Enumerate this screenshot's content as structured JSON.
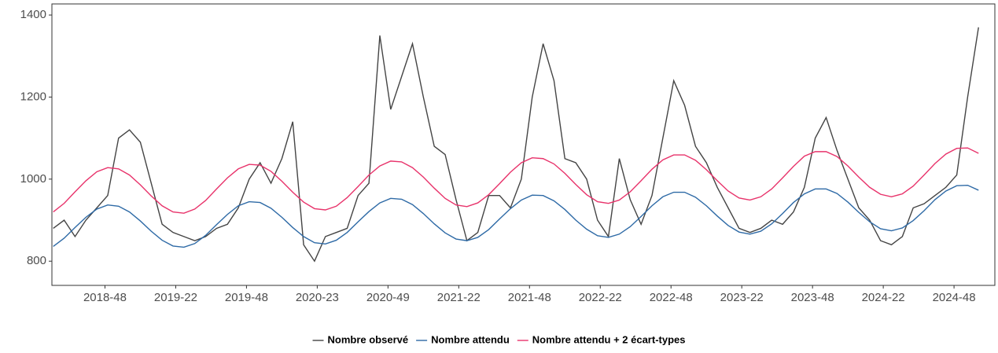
{
  "chart_data": {
    "type": "line",
    "x": [
      -19,
      -15,
      -11,
      -7,
      -3,
      1,
      5,
      9,
      13,
      17,
      21,
      25,
      29,
      33,
      37,
      41,
      45,
      49,
      53,
      57,
      61,
      65,
      69,
      73,
      77,
      81,
      85,
      89,
      93,
      97,
      101,
      105,
      109,
      113,
      117,
      121,
      125,
      129,
      133,
      137,
      141,
      145,
      149,
      153,
      157,
      161,
      165,
      169,
      173,
      177,
      181,
      185,
      189,
      193,
      197,
      201,
      205,
      209,
      213,
      217,
      221,
      225,
      229,
      233,
      237,
      241,
      245,
      249,
      253,
      257,
      261,
      265,
      269,
      273,
      277,
      281,
      285,
      289,
      293,
      297,
      301,
      305,
      309,
      313,
      317,
      321
    ],
    "series": [
      {
        "name": "Nombre observé",
        "color": "#444444",
        "values": [
          880,
          900,
          860,
          900,
          930,
          960,
          1100,
          1120,
          1090,
          990,
          890,
          870,
          860,
          850,
          860,
          880,
          890,
          930,
          1000,
          1040,
          990,
          1050,
          1140,
          840,
          800,
          860,
          870,
          880,
          960,
          990,
          1350,
          1170,
          1250,
          1330,
          1200,
          1080,
          1060,
          950,
          850,
          870,
          960,
          960,
          930,
          1000,
          1200,
          1330,
          1240,
          1050,
          1040,
          1000,
          900,
          860,
          1050,
          950,
          890,
          960,
          1100,
          1240,
          1180,
          1080,
          1040,
          980,
          930,
          880,
          870,
          880,
          900,
          890,
          920,
          980,
          1100,
          1150,
          1070,
          1000,
          930,
          900,
          850,
          840,
          860,
          930,
          940,
          960,
          980,
          1010,
          1200,
          1370
        ]
      },
      {
        "name": "Nombre attendu",
        "color": "#2e6aa6",
        "values": [
          836,
          856,
          882,
          907,
          927,
          937,
          934,
          920,
          898,
          873,
          851,
          837,
          834,
          843,
          863,
          889,
          914,
          935,
          945,
          943,
          929,
          907,
          882,
          860,
          845,
          842,
          851,
          870,
          896,
          921,
          942,
          953,
          951,
          938,
          916,
          891,
          869,
          854,
          850,
          858,
          877,
          903,
          928,
          949,
          961,
          960,
          947,
          926,
          900,
          878,
          862,
          858,
          866,
          884,
          909,
          935,
          957,
          968,
          968,
          956,
          935,
          910,
          887,
          871,
          866,
          873,
          891,
          916,
          943,
          964,
          976,
          976,
          965,
          944,
          919,
          896,
          879,
          874,
          881,
          899,
          923,
          950,
          971,
          984,
          985,
          973
        ]
      },
      {
        "name": "Nombre attendu  + 2 écart-types",
        "color": "#e8336b",
        "values": [
          920,
          941,
          969,
          996,
          1018,
          1028,
          1025,
          1010,
          986,
          959,
          935,
          920,
          917,
          927,
          948,
          976,
          1003,
          1025,
          1036,
          1034,
          1019,
          995,
          968,
          944,
          928,
          925,
          934,
          955,
          982,
          1010,
          1032,
          1044,
          1042,
          1028,
          1005,
          978,
          953,
          937,
          933,
          942,
          962,
          989,
          1017,
          1040,
          1052,
          1050,
          1037,
          1014,
          987,
          962,
          945,
          941,
          949,
          969,
          996,
          1024,
          1047,
          1059,
          1059,
          1046,
          1023,
          996,
          971,
          954,
          949,
          957,
          976,
          1003,
          1031,
          1056,
          1067,
          1067,
          1055,
          1032,
          1005,
          980,
          963,
          957,
          964,
          983,
          1010,
          1038,
          1061,
          1075,
          1076,
          1063
        ]
      }
    ],
    "xlim": [
      -19.5,
      327
    ],
    "xticks": [
      {
        "value": 0,
        "label": "2018-48"
      },
      {
        "value": 26,
        "label": "2019-22"
      },
      {
        "value": 52,
        "label": "2019-48"
      },
      {
        "value": 78,
        "label": "2020-23"
      },
      {
        "value": 104,
        "label": "2020-49"
      },
      {
        "value": 130,
        "label": "2021-22"
      },
      {
        "value": 156,
        "label": "2021-48"
      },
      {
        "value": 182,
        "label": "2022-22"
      },
      {
        "value": 208,
        "label": "2022-48"
      },
      {
        "value": 234,
        "label": "2023-22"
      },
      {
        "value": 260,
        "label": "2023-48"
      },
      {
        "value": 286,
        "label": "2024-22"
      },
      {
        "value": 312,
        "label": "2024-48"
      }
    ],
    "ylim": [
      741,
      1427
    ],
    "yticks": [
      800,
      1000,
      1200,
      1400
    ],
    "grid": false,
    "legend": "bottom"
  }
}
